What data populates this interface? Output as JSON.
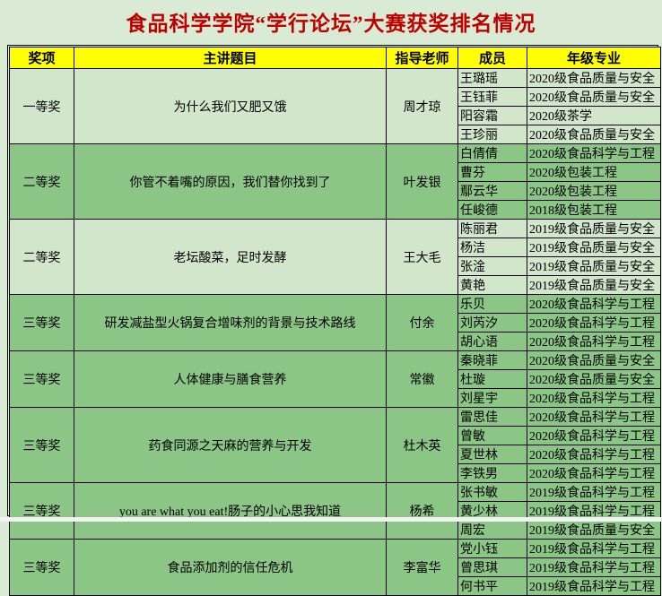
{
  "window": {
    "title": "食品科学学院“学行论坛”大赛获奖排名情况"
  },
  "colors": {
    "title_text": "#bf0000",
    "header_bg": "#ffff00",
    "row_light": "#d2e6cc",
    "row_medium": "#8cc687",
    "page_bg": "#d9ebd4",
    "border": "#000000",
    "edge_strip": "#f3f3f3"
  },
  "table": {
    "headers": [
      "奖项",
      "主讲题目",
      "指导老师",
      "成员",
      "年级专业"
    ],
    "groups": [
      {
        "award": "一等奖",
        "topic": "为什么我们又肥又饿",
        "advisor": "周才琼",
        "shade": "light",
        "members": [
          {
            "name": "王璐瑶",
            "major": "2020级食品质量与安全"
          },
          {
            "name": "王钰菲",
            "major": "2020级食品质量与安全"
          },
          {
            "name": "阳容霜",
            "major": "2020级茶学"
          },
          {
            "name": "王珍丽",
            "major": "2020级食品质量与安全"
          }
        ]
      },
      {
        "award": "二等奖",
        "topic": "你管不着嘴的原因，我们替你找到了",
        "advisor": "叶发银",
        "shade": "medium",
        "members": [
          {
            "name": "白倩倩",
            "major": "2020级食品科学与工程"
          },
          {
            "name": "曹芬",
            "major": "2020级包装工程"
          },
          {
            "name": "鄢云华",
            "major": "2020级包装工程"
          },
          {
            "name": "任峻德",
            "major": "2018级包装工程"
          }
        ]
      },
      {
        "award": "二等奖",
        "topic": "老坛酸菜，足时发酵",
        "advisor": "王大毛",
        "shade": "light",
        "members": [
          {
            "name": "陈丽君",
            "major": "2019级食品质量与安全"
          },
          {
            "name": "杨洁",
            "major": "2019级食品质量与安全"
          },
          {
            "name": "张淦",
            "major": "2019级食品质量与安全"
          },
          {
            "name": "黄艳",
            "major": "2019级食品质量与安全"
          }
        ]
      },
      {
        "award": "三等奖",
        "topic": "研发减盐型火锅复合增味剂的背景与技术路线",
        "advisor": "付余",
        "shade": "medium",
        "members": [
          {
            "name": "乐贝",
            "major": "2020级食品科学与工程"
          },
          {
            "name": "刘芮汐",
            "major": "2020级食品科学与工程"
          },
          {
            "name": "胡心语",
            "major": "2020级食品科学与工程"
          }
        ]
      },
      {
        "award": "三等奖",
        "topic": "人体健康与膳食营养",
        "advisor": "常徽",
        "shade": "medium",
        "members": [
          {
            "name": "秦晓菲",
            "major": "2020级食品质量与安全"
          },
          {
            "name": "杜璇",
            "major": "2020级食品质量与安全"
          },
          {
            "name": "刘星宇",
            "major": "2020级食品科学与工程"
          }
        ]
      },
      {
        "award": "三等奖",
        "topic": "药食同源之天麻的营养与开发",
        "advisor": "杜木英",
        "shade": "medium",
        "members": [
          {
            "name": "雷思佳",
            "major": "2020级食品科学与工程"
          },
          {
            "name": "曾敏",
            "major": "2020级食品科学与工程"
          },
          {
            "name": "夏世林",
            "major": "2020级食品科学与工程"
          },
          {
            "name": "李铁男",
            "major": "2020级食品科学与工程"
          }
        ]
      },
      {
        "award": "三等奖",
        "topic": "you are what you eat!肠子的小心思我知道",
        "advisor": "杨希",
        "shade": "medium",
        "members": [
          {
            "name": "张书敏",
            "major": "2019级食品科学与工程"
          },
          {
            "name": "黄少林",
            "major": "2019级食品科学与工程"
          },
          {
            "name": "周宏",
            "major": "2019级食品质量与安全"
          }
        ]
      },
      {
        "award": "三等奖",
        "topic": "食品添加剂的信任危机",
        "advisor": "李富华",
        "shade": "medium",
        "members": [
          {
            "name": "党小钰",
            "major": "2019级食品科学与工程"
          },
          {
            "name": "曾思琪",
            "major": "2019级食品科学与工程"
          },
          {
            "name": "何书平",
            "major": "2019级食品科学与工程"
          }
        ]
      }
    ]
  }
}
